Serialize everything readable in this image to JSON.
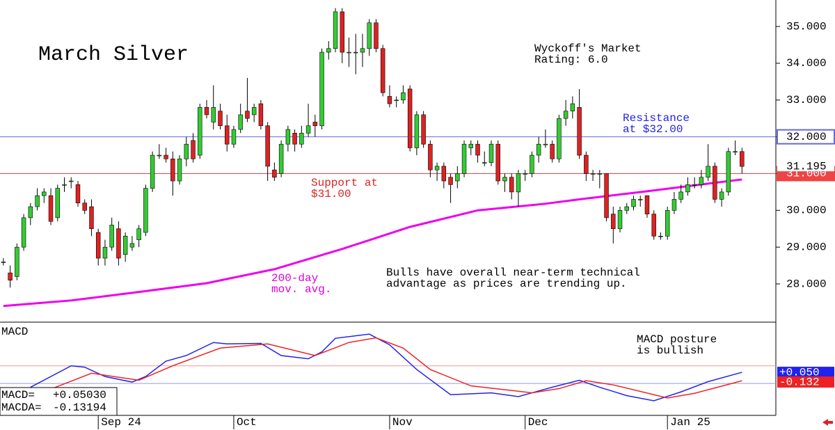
{
  "chart_data": {
    "type": "candlestick",
    "title": "March Silver",
    "annotations": [
      {
        "lines": [
          "Wyckoff's Market",
          "Rating: 6.0"
        ],
        "color": "#000000"
      },
      {
        "lines": [
          "Resistance",
          "at $32.00"
        ],
        "color": "#2222dd"
      },
      {
        "lines": [
          "Support at",
          "$31.00"
        ],
        "color": "#dd2222"
      },
      {
        "lines": [
          "200-day",
          "mov. avg."
        ],
        "color": "#dd00dd"
      },
      {
        "lines": [
          "Bulls have overall near-term technical",
          "advantage as prices are trending up."
        ],
        "color": "#000000"
      },
      {
        "lines": [
          "MACD posture",
          "is bullish"
        ],
        "color": "#000000"
      }
    ],
    "ohlc": [
      [
        28.6,
        28.7,
        28.5,
        28.6
      ],
      [
        28.3,
        28.5,
        27.9,
        28.1
      ],
      [
        28.2,
        29.1,
        28.1,
        29.0
      ],
      [
        29.0,
        29.9,
        28.9,
        29.8
      ],
      [
        29.8,
        30.2,
        29.6,
        30.1
      ],
      [
        30.1,
        30.6,
        30.0,
        30.4
      ],
      [
        30.4,
        30.6,
        30.2,
        30.5
      ],
      [
        30.4,
        30.6,
        29.6,
        29.7
      ],
      [
        29.8,
        30.7,
        29.7,
        30.6
      ],
      [
        30.7,
        30.9,
        30.5,
        30.7
      ],
      [
        30.8,
        30.9,
        30.6,
        30.8
      ],
      [
        30.7,
        30.8,
        30.1,
        30.2
      ],
      [
        30.2,
        30.3,
        29.9,
        30.0
      ],
      [
        30.1,
        30.3,
        29.3,
        29.5
      ],
      [
        29.4,
        29.5,
        28.5,
        28.7
      ],
      [
        28.7,
        29.2,
        28.5,
        29.0
      ],
      [
        29.0,
        29.8,
        28.9,
        29.6
      ],
      [
        29.5,
        29.7,
        28.5,
        28.7
      ],
      [
        28.8,
        29.4,
        28.6,
        29.3
      ],
      [
        29.0,
        29.3,
        28.9,
        29.1
      ],
      [
        29.2,
        29.6,
        29.0,
        29.5
      ],
      [
        29.4,
        30.7,
        29.3,
        30.6
      ],
      [
        30.6,
        31.6,
        30.5,
        31.5
      ],
      [
        31.5,
        31.8,
        31.4,
        31.5
      ],
      [
        31.5,
        31.7,
        31.3,
        31.4
      ],
      [
        31.4,
        31.6,
        30.4,
        30.8
      ],
      [
        30.8,
        31.5,
        30.7,
        31.4
      ],
      [
        31.4,
        32.0,
        31.2,
        31.8
      ],
      [
        31.9,
        32.1,
        31.3,
        31.4
      ],
      [
        31.5,
        32.9,
        31.4,
        32.8
      ],
      [
        32.8,
        33.0,
        32.5,
        32.6
      ],
      [
        32.4,
        33.4,
        32.2,
        32.8
      ],
      [
        32.7,
        32.9,
        32.2,
        32.3
      ],
      [
        32.3,
        32.6,
        31.6,
        31.8
      ],
      [
        31.8,
        32.3,
        31.7,
        32.2
      ],
      [
        32.2,
        32.9,
        32.1,
        32.6
      ],
      [
        32.7,
        33.6,
        32.4,
        32.5
      ],
      [
        32.6,
        32.9,
        32.4,
        32.8
      ],
      [
        32.9,
        33.0,
        32.2,
        32.3
      ],
      [
        32.3,
        32.4,
        30.8,
        31.2
      ],
      [
        31.1,
        31.3,
        30.8,
        30.9
      ],
      [
        31.0,
        31.9,
        30.9,
        31.8
      ],
      [
        31.8,
        32.3,
        31.6,
        32.2
      ],
      [
        32.1,
        32.2,
        31.6,
        31.8
      ],
      [
        31.8,
        32.3,
        31.7,
        32.1
      ],
      [
        32.1,
        32.9,
        32.0,
        32.3
      ],
      [
        32.4,
        32.6,
        32.0,
        32.3
      ],
      [
        32.3,
        34.4,
        32.2,
        34.3
      ],
      [
        34.3,
        34.6,
        34.1,
        34.4
      ],
      [
        34.4,
        35.5,
        34.3,
        35.4
      ],
      [
        35.4,
        35.5,
        34.0,
        34.3
      ],
      [
        34.3,
        34.7,
        33.9,
        34.3
      ],
      [
        34.3,
        34.8,
        33.7,
        34.3
      ],
      [
        34.3,
        34.8,
        33.9,
        34.4
      ],
      [
        34.4,
        35.2,
        34.2,
        35.1
      ],
      [
        35.1,
        35.2,
        34.3,
        34.4
      ],
      [
        34.4,
        34.5,
        33.1,
        33.2
      ],
      [
        33.1,
        33.4,
        32.8,
        32.9
      ],
      [
        33.0,
        33.1,
        32.8,
        33.0
      ],
      [
        33.0,
        33.4,
        32.9,
        33.2
      ],
      [
        33.3,
        33.4,
        31.6,
        31.7
      ],
      [
        31.7,
        32.7,
        31.5,
        32.6
      ],
      [
        32.6,
        32.7,
        31.7,
        31.8
      ],
      [
        31.8,
        31.9,
        30.9,
        31.1
      ],
      [
        31.1,
        31.3,
        30.8,
        31.2
      ],
      [
        31.2,
        31.3,
        30.6,
        30.8
      ],
      [
        30.9,
        31.0,
        30.2,
        30.7
      ],
      [
        30.8,
        31.2,
        30.6,
        31.0
      ],
      [
        31.0,
        31.9,
        30.9,
        31.8
      ],
      [
        31.7,
        31.9,
        31.5,
        31.8
      ],
      [
        31.8,
        31.9,
        31.3,
        31.5
      ],
      [
        31.3,
        31.6,
        31.2,
        31.3
      ],
      [
        31.3,
        31.9,
        31.2,
        31.8
      ],
      [
        31.8,
        31.9,
        30.7,
        30.8
      ],
      [
        30.8,
        31.0,
        30.5,
        30.9
      ],
      [
        30.9,
        31.0,
        30.3,
        30.5
      ],
      [
        30.5,
        31.1,
        30.1,
        31.0
      ],
      [
        31.0,
        31.1,
        30.8,
        31.0
      ],
      [
        31.0,
        31.6,
        30.9,
        31.5
      ],
      [
        31.5,
        32.0,
        31.3,
        31.8
      ],
      [
        31.8,
        32.2,
        31.7,
        31.8
      ],
      [
        31.8,
        31.9,
        31.3,
        31.4
      ],
      [
        31.4,
        32.6,
        31.3,
        32.5
      ],
      [
        32.5,
        33.0,
        32.3,
        32.7
      ],
      [
        32.7,
        33.1,
        32.5,
        32.9
      ],
      [
        32.8,
        33.3,
        31.4,
        31.5
      ],
      [
        31.5,
        31.6,
        30.8,
        31.0
      ],
      [
        31.0,
        31.1,
        30.8,
        31.0
      ],
      [
        31.0,
        31.1,
        30.6,
        31.0
      ],
      [
        31.0,
        31.0,
        29.7,
        29.8
      ],
      [
        29.9,
        30.1,
        29.1,
        29.5
      ],
      [
        29.5,
        30.1,
        29.4,
        30.0
      ],
      [
        30.0,
        30.2,
        29.9,
        30.1
      ],
      [
        30.1,
        30.4,
        30.0,
        30.3
      ],
      [
        30.3,
        30.4,
        30.1,
        30.3
      ],
      [
        30.4,
        30.4,
        29.8,
        29.9
      ],
      [
        29.9,
        30.0,
        29.2,
        29.3
      ],
      [
        29.3,
        29.4,
        29.2,
        29.3
      ],
      [
        29.3,
        30.1,
        29.2,
        30.0
      ],
      [
        30.0,
        30.5,
        29.9,
        30.3
      ],
      [
        30.3,
        30.7,
        30.2,
        30.5
      ],
      [
        30.5,
        30.9,
        30.4,
        30.7
      ],
      [
        30.7,
        30.9,
        30.6,
        30.7
      ],
      [
        30.7,
        31.1,
        30.6,
        30.9
      ],
      [
        30.9,
        31.8,
        30.8,
        31.2
      ],
      [
        31.2,
        31.3,
        30.2,
        30.3
      ],
      [
        30.3,
        30.6,
        30.1,
        30.5
      ],
      [
        30.5,
        31.7,
        30.4,
        31.6
      ],
      [
        31.6,
        31.9,
        31.5,
        31.6
      ],
      [
        31.6,
        31.7,
        31.0,
        31.195
      ]
    ],
    "up_color": "#33cc33",
    "down_color": "#dd2222",
    "moving_average": {
      "name": "200-day",
      "color": "#ee00ee",
      "x": [
        0,
        10,
        20,
        30,
        40,
        50,
        60,
        70,
        80,
        85,
        95,
        105,
        109
      ],
      "values": [
        27.4,
        27.55,
        27.78,
        28.02,
        28.4,
        28.95,
        29.55,
        30.0,
        30.18,
        30.3,
        30.52,
        30.75,
        30.84
      ]
    },
    "levels": [
      {
        "value": 32,
        "color": "#6666dd",
        "label": "32.000"
      },
      {
        "value": 31,
        "color": "#ee4444",
        "label": "31.000"
      }
    ],
    "last_price_label": "31.195",
    "xlim": [
      -0.5,
      114
    ],
    "xticks": [
      {
        "value": 14,
        "label": "Sep 24"
      },
      {
        "value": 34,
        "label": "Oct"
      },
      {
        "value": 57,
        "label": "Nov"
      },
      {
        "value": 77,
        "label": "Dec"
      },
      {
        "value": 98,
        "label": "Jan 25"
      }
    ],
    "ylim": [
      26.96,
      35.72
    ],
    "yticks": [
      {
        "value": 28,
        "label": "28.000"
      },
      {
        "value": 29,
        "label": "29.000"
      },
      {
        "value": 30,
        "label": "30.000"
      },
      {
        "value": 31,
        "label": "31.000"
      },
      {
        "value": 32,
        "label": "32.000"
      },
      {
        "value": 33,
        "label": "33.000"
      },
      {
        "value": 34,
        "label": "34.000"
      },
      {
        "value": 35,
        "label": "35.000"
      }
    ],
    "macd": {
      "title": "MACD",
      "ylim": [
        -0.874,
        1.126
      ],
      "levels": [
        0.19,
        -0.19
      ],
      "series": [
        {
          "name": "MACD=",
          "label": "+0.05030",
          "end_label": "+0.050",
          "color": "#2222ee",
          "x": [
            4,
            10,
            12,
            15,
            19,
            21,
            24,
            27,
            31,
            33,
            38,
            41,
            45,
            47,
            49,
            54,
            57,
            61,
            66,
            72,
            76,
            81,
            85,
            88,
            92,
            96,
            100,
            104,
            109
          ],
          "values": [
            -0.27,
            0.19,
            0.16,
            -0.04,
            -0.16,
            -0.04,
            0.29,
            0.41,
            0.69,
            0.66,
            0.67,
            0.41,
            0.34,
            0.49,
            0.78,
            0.87,
            0.64,
            0.11,
            -0.43,
            -0.39,
            -0.47,
            -0.27,
            -0.12,
            -0.27,
            -0.45,
            -0.56,
            -0.37,
            -0.15,
            0.0503
          ]
        },
        {
          "name": "MACDA=",
          "label": "-0.13194",
          "end_label": "-0.132",
          "color": "#ee2222",
          "x": [
            7,
            13,
            20,
            25,
            32,
            39,
            46,
            51,
            55,
            59,
            63,
            69,
            78,
            82,
            86,
            90,
            98,
            102,
            109
          ],
          "values": [
            -0.31,
            0.03,
            -0.12,
            0.19,
            0.57,
            0.66,
            0.41,
            0.69,
            0.79,
            0.57,
            0.11,
            -0.24,
            -0.39,
            -0.3,
            -0.13,
            -0.22,
            -0.5,
            -0.4,
            -0.13194
          ]
        }
      ]
    }
  }
}
